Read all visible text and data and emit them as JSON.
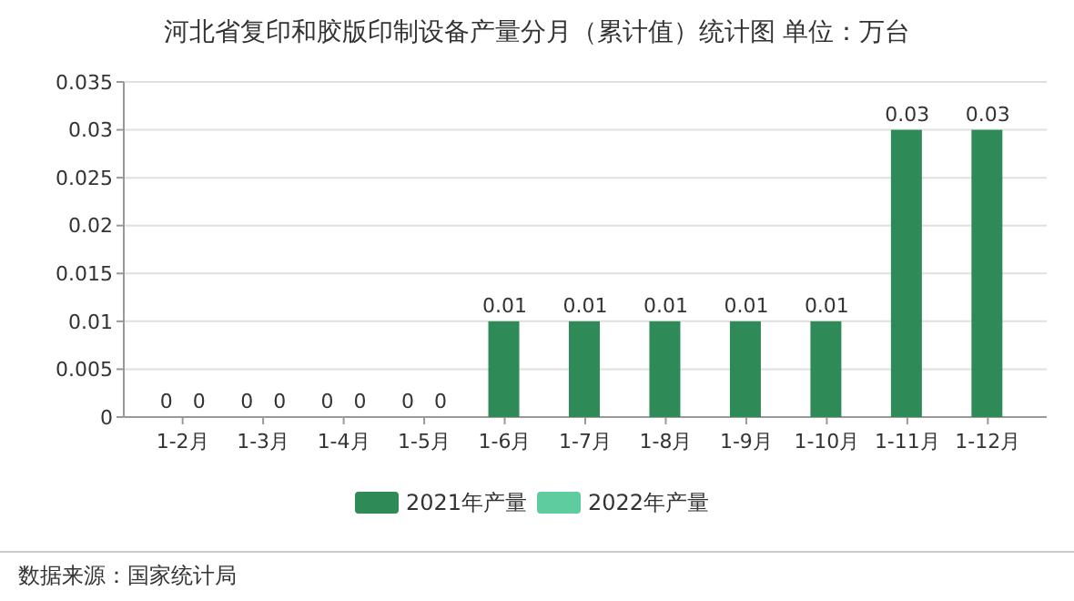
{
  "chart_data": {
    "type": "bar",
    "title": "河北省复印和胶版印制设备产量分月（累计值）统计图 单位：万台",
    "categories": [
      "1-2月",
      "1-3月",
      "1-4月",
      "1-5月",
      "1-6月",
      "1-7月",
      "1-8月",
      "1-9月",
      "1-10月",
      "1-11月",
      "1-12月"
    ],
    "series": [
      {
        "name": "2021年产量",
        "color": "#2e8b57",
        "values": [
          0,
          0,
          0,
          0,
          0.01,
          0.01,
          0.01,
          0.01,
          0.01,
          0.03,
          0.03
        ]
      },
      {
        "name": "2022年产量",
        "color": "#5fcca0",
        "values": [
          0,
          0,
          0,
          0,
          null,
          null,
          null,
          null,
          null,
          null,
          null
        ]
      }
    ],
    "ylim": [
      0,
      0.035
    ],
    "yticks": [
      0,
      0.005,
      0.01,
      0.015,
      0.02,
      0.025,
      0.03,
      0.035
    ],
    "grid": "y",
    "legend": "bottom",
    "data_labels": true,
    "annotations": [
      "数据来源：国家统计局"
    ]
  }
}
